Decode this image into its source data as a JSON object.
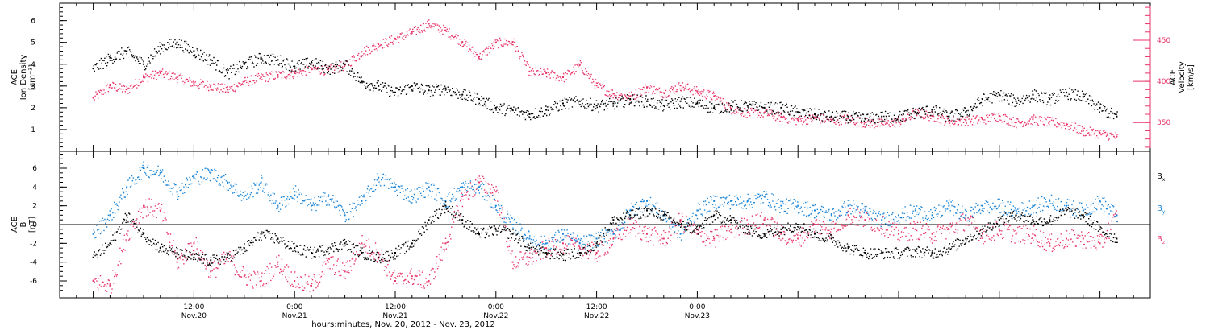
{
  "colors": {
    "black": "#000000",
    "pink": "#e8356a",
    "blue": "#1b86d8"
  },
  "chart_data": [
    {
      "type": "scatter",
      "ylabel": [
        "ACE",
        "Ion Density",
        "[cm⁻³]"
      ],
      "ylim": [
        0,
        6.8
      ],
      "yticks": [
        1,
        2,
        3,
        4,
        5,
        6
      ],
      "ytick_labels": [
        "1",
        "2",
        "3",
        "4",
        "5",
        "6"
      ],
      "ylabel_right": [
        "ACE",
        "Velocity",
        "[km/s]"
      ],
      "ylim_right": [
        315,
        495
      ],
      "yticks_right": [
        350,
        400,
        450
      ],
      "ytick_labels_right": [
        "350",
        "400",
        "450"
      ],
      "series": [
        {
          "color": "black",
          "axis": "left",
          "x": [
            0,
            2,
            4,
            6,
            8,
            10,
            12,
            14,
            16,
            18,
            20,
            22,
            24,
            26,
            28,
            30,
            32,
            34,
            36,
            38,
            40,
            42,
            44,
            46,
            48,
            50,
            52,
            54,
            56,
            58,
            60,
            62,
            64,
            66,
            68,
            70,
            72,
            74,
            76,
            78,
            80,
            82,
            84,
            86,
            88,
            90,
            92,
            94,
            96,
            98,
            100,
            102,
            104,
            106,
            108,
            110,
            112,
            114,
            116,
            118,
            120,
            122
          ],
          "y": [
            3.8,
            4.3,
            4.6,
            4.0,
            4.8,
            5.0,
            4.6,
            4.2,
            3.6,
            4.0,
            4.3,
            4.2,
            3.9,
            4.1,
            3.8,
            4.0,
            3.2,
            3.0,
            2.7,
            3.0,
            2.8,
            2.9,
            2.6,
            2.4,
            2.0,
            1.9,
            1.7,
            1.9,
            2.2,
            2.3,
            2.1,
            2.2,
            2.4,
            2.3,
            2.1,
            2.3,
            2.2,
            2.0,
            2.1,
            2.1,
            2.0,
            2.0,
            1.8,
            1.7,
            1.6,
            1.6,
            1.5,
            1.6,
            1.6,
            1.8,
            1.9,
            1.6,
            1.8,
            2.4,
            2.6,
            2.3,
            2.6,
            2.4,
            2.7,
            2.5,
            2.0,
            1.6
          ]
        },
        {
          "color": "pink",
          "axis": "right",
          "x": [
            0,
            2,
            4,
            6,
            8,
            10,
            12,
            14,
            16,
            18,
            20,
            22,
            24,
            26,
            28,
            30,
            32,
            34,
            36,
            38,
            40,
            42,
            44,
            46,
            48,
            50,
            52,
            54,
            56,
            58,
            60,
            62,
            64,
            66,
            68,
            70,
            72,
            74,
            76,
            78,
            80,
            82,
            84,
            86,
            88,
            90,
            92,
            94,
            96,
            98,
            100,
            102,
            104,
            106,
            108,
            110,
            112,
            114,
            116,
            118,
            120,
            122
          ],
          "y": [
            380,
            395,
            390,
            405,
            410,
            405,
            398,
            395,
            390,
            400,
            405,
            408,
            410,
            416,
            414,
            420,
            436,
            445,
            452,
            460,
            470,
            462,
            448,
            430,
            447,
            448,
            412,
            410,
            405,
            420,
            395,
            385,
            382,
            393,
            386,
            395,
            388,
            382,
            367,
            362,
            362,
            357,
            353,
            356,
            353,
            355,
            350,
            349,
            351,
            362,
            358,
            352,
            353,
            354,
            358,
            350,
            354,
            351,
            348,
            340,
            337,
            333
          ]
        }
      ]
    },
    {
      "type": "scatter",
      "ylabel": [
        "ACE",
        "B",
        "[nT]"
      ],
      "ylim": [
        -7.8,
        7.8
      ],
      "yticks": [
        -6,
        -4,
        -2,
        0,
        2,
        4,
        6
      ],
      "ytick_labels": [
        "-6",
        "-4",
        "-2",
        "0",
        "2",
        "4",
        "6"
      ],
      "legend": [
        {
          "label": "B",
          "sub": "x",
          "color": "black"
        },
        {
          "label": "B",
          "sub": "y",
          "color": "blue"
        },
        {
          "label": "B",
          "sub": "z",
          "color": "pink"
        }
      ],
      "series": [
        {
          "color": "black",
          "x": [
            0,
            2,
            4,
            6,
            8,
            10,
            12,
            14,
            16,
            18,
            20,
            22,
            24,
            26,
            28,
            30,
            32,
            34,
            36,
            38,
            40,
            42,
            44,
            46,
            48,
            50,
            52,
            54,
            56,
            58,
            60,
            62,
            64,
            66,
            68,
            70,
            72,
            74,
            76,
            78,
            80,
            82,
            84,
            86,
            88,
            90,
            92,
            94,
            96,
            98,
            100,
            102,
            104,
            106,
            108,
            110,
            112,
            114,
            116,
            118,
            120,
            122
          ],
          "y": [
            -3.5,
            -2.0,
            1.0,
            -1.0,
            -2.5,
            -3.0,
            -3.5,
            -3.8,
            -3.5,
            -2.5,
            -1.0,
            -1.5,
            -2.5,
            -3.0,
            -2.5,
            -2.0,
            -3.0,
            -3.5,
            -3.0,
            -2.0,
            0.5,
            2.0,
            0.5,
            -1.0,
            -0.5,
            -1.0,
            -2.5,
            -3.0,
            -3.2,
            -3.0,
            -2.0,
            0.5,
            1.0,
            1.5,
            1.0,
            0.0,
            -0.5,
            1.0,
            0.5,
            -0.5,
            -1.0,
            -0.5,
            0.0,
            -1.0,
            -1.5,
            -2.5,
            -3.0,
            -3.0,
            -3.0,
            -2.8,
            -3.0,
            -2.5,
            -1.5,
            -0.5,
            0.5,
            1.0,
            0.5,
            0.5,
            1.5,
            1.0,
            -0.5,
            -1.5
          ]
        },
        {
          "color": "blue",
          "x": [
            0,
            2,
            4,
            6,
            8,
            10,
            12,
            14,
            16,
            18,
            20,
            22,
            24,
            26,
            28,
            30,
            32,
            34,
            36,
            38,
            40,
            42,
            44,
            46,
            48,
            50,
            52,
            54,
            56,
            58,
            60,
            62,
            64,
            66,
            68,
            70,
            72,
            74,
            76,
            78,
            80,
            82,
            84,
            86,
            88,
            90,
            92,
            94,
            96,
            98,
            100,
            102,
            104,
            106,
            108,
            110,
            112,
            114,
            116,
            118,
            120,
            122
          ],
          "y": [
            -1.0,
            1.0,
            4.0,
            6.0,
            5.5,
            3.5,
            5.0,
            5.5,
            4.5,
            3.0,
            4.5,
            2.0,
            3.5,
            2.0,
            3.0,
            1.0,
            2.5,
            5.0,
            4.0,
            3.0,
            4.0,
            2.5,
            4.0,
            4.0,
            2.0,
            0.0,
            -1.5,
            -2.0,
            -1.0,
            -2.0,
            -1.5,
            -1.0,
            1.5,
            2.5,
            1.0,
            -1.0,
            1.5,
            2.5,
            2.5,
            2.5,
            3.0,
            2.0,
            2.0,
            1.5,
            1.0,
            2.0,
            1.5,
            0.5,
            1.0,
            1.5,
            1.0,
            2.0,
            1.0,
            2.0,
            2.0,
            1.5,
            2.0,
            2.5,
            2.0,
            1.5,
            2.5,
            1.0
          ]
        },
        {
          "color": "pink",
          "x": [
            0,
            2,
            4,
            6,
            8,
            10,
            12,
            14,
            16,
            18,
            20,
            22,
            24,
            26,
            28,
            30,
            32,
            34,
            36,
            38,
            40,
            42,
            44,
            46,
            48,
            50,
            52,
            54,
            56,
            58,
            60,
            62,
            64,
            66,
            68,
            70,
            72,
            74,
            76,
            78,
            80,
            82,
            84,
            86,
            88,
            90,
            92,
            94,
            96,
            98,
            100,
            102,
            104,
            106,
            108,
            110,
            112,
            114,
            116,
            118,
            120,
            122
          ],
          "y": [
            -6.0,
            -6.5,
            -1.0,
            2.0,
            1.5,
            -4.0,
            -2.0,
            -5.0,
            -3.5,
            -5.5,
            -6.0,
            -4.0,
            -6.0,
            -6.5,
            -4.0,
            -5.0,
            -2.0,
            -3.0,
            -6.0,
            -5.5,
            -6.0,
            -2.0,
            3.0,
            4.5,
            3.5,
            -4.0,
            -3.5,
            -2.5,
            -2.0,
            -2.5,
            -3.0,
            -1.5,
            0.0,
            -1.0,
            -1.5,
            0.5,
            -1.0,
            -1.5,
            -0.5,
            0.0,
            0.5,
            -1.0,
            -1.5,
            0.0,
            -0.5,
            1.0,
            0.5,
            0.0,
            -1.0,
            -0.5,
            -1.0,
            -0.5,
            0.5,
            -1.0,
            -0.5,
            -1.0,
            -1.0,
            -2.0,
            -1.5,
            -1.5,
            -2.0,
            1.0
          ]
        }
      ]
    }
  ],
  "x_axis": {
    "xlim": [
      -4,
      126
    ],
    "major_ticks": [
      12,
      24,
      36,
      48,
      60,
      72,
      84,
      96,
      108,
      120
    ],
    "tick_labels": [
      {
        "x": 12,
        "time": "12:00",
        "date": "Nov.20"
      },
      {
        "x": 24,
        "time": "0:00",
        "date": "Nov.21"
      },
      {
        "x": 36,
        "time": "12:00",
        "date": "Nov.21"
      },
      {
        "x": 48,
        "time": "0:00",
        "date": "Nov.22"
      },
      {
        "x": 60,
        "time": "12:00",
        "date": "Nov.22"
      },
      {
        "x": 72,
        "time": "0:00",
        "date": "Nov.23"
      }
    ],
    "xlabel": "hours:minutes, Nov. 20, 2012 - Nov. 23, 2012"
  }
}
